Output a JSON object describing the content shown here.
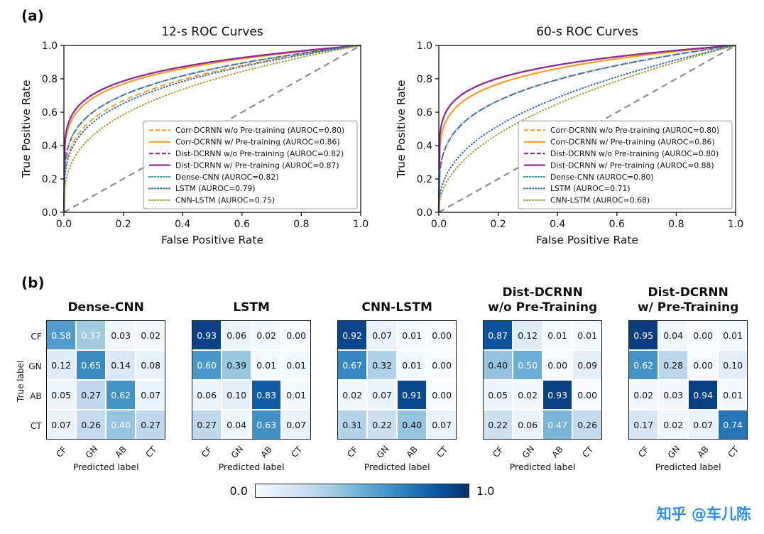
{
  "figure": {
    "panel_a_label": "(a)",
    "panel_b_label": "(b)"
  },
  "colorbar": {
    "min_label": "0.0",
    "max_label": "1.0",
    "colormap": "Blues",
    "stops": [
      [
        0,
        "#f7fbff"
      ],
      [
        0.125,
        "#deebf7"
      ],
      [
        0.25,
        "#c6dbef"
      ],
      [
        0.375,
        "#9ecae1"
      ],
      [
        0.5,
        "#6baed6"
      ],
      [
        0.625,
        "#4292c6"
      ],
      [
        0.75,
        "#2171b5"
      ],
      [
        0.875,
        "#08519c"
      ],
      [
        1,
        "#08306b"
      ]
    ]
  },
  "watermark": {
    "text": "知乎 @车儿陈",
    "color": "#2d8cf0"
  },
  "chart_data": [
    {
      "id": "roc-12s",
      "type": "line",
      "title": "12-s ROC Curves",
      "xlabel": "False Positive Rate",
      "ylabel": "True Positive Rate",
      "xlim": [
        0,
        1
      ],
      "ylim": [
        0,
        1
      ],
      "xticks": [
        0,
        0.2,
        0.4,
        0.6,
        0.8,
        1.0
      ],
      "yticks": [
        0,
        0.2,
        0.4,
        0.6,
        0.8,
        1.0
      ],
      "grid": false,
      "legend_position": "lower right",
      "diagonal_reference_line": {
        "color": "#8c8c8c",
        "linestyle": "dashed"
      },
      "series": [
        {
          "name": "Corr-DCRNN w/o Pre-training (AUROC=0.80)",
          "auroc": 0.8,
          "color": "#f5a02a",
          "linestyle": "dashed"
        },
        {
          "name": "Corr-DCRNN w/ Pre-training (AUROC=0.86)",
          "auroc": 0.86,
          "color": "#f5a02a",
          "linestyle": "solid"
        },
        {
          "name": "Dist-DCRNN w/o Pre-training (AUROC=0.82)",
          "auroc": 0.82,
          "color": "#8e2a96",
          "linestyle": "dashed"
        },
        {
          "name": "Dist-DCRNN w/ Pre-training (AUROC=0.87)",
          "auroc": 0.87,
          "color": "#8e2a96",
          "linestyle": "solid"
        },
        {
          "name": "Dense-CNN (AUROC=0.82)",
          "auroc": 0.82,
          "color": "#2e9e9e",
          "linestyle": "dotted"
        },
        {
          "name": "LSTM (AUROC=0.79)",
          "auroc": 0.79,
          "color": "#3a66c9",
          "linestyle": "dotted"
        },
        {
          "name": "CNN-LSTM (AUROC=0.75)",
          "auroc": 0.75,
          "color": "#a0a12f",
          "linestyle": "dotted"
        }
      ]
    },
    {
      "id": "roc-60s",
      "type": "line",
      "title": "60-s ROC Curves",
      "xlabel": "False Positive Rate",
      "ylabel": "True Positive Rate",
      "xlim": [
        0,
        1
      ],
      "ylim": [
        0,
        1
      ],
      "xticks": [
        0,
        0.2,
        0.4,
        0.6,
        0.8,
        1.0
      ],
      "yticks": [
        0,
        0.2,
        0.4,
        0.6,
        0.8,
        1.0
      ],
      "grid": false,
      "legend_position": "lower right",
      "diagonal_reference_line": {
        "color": "#8c8c8c",
        "linestyle": "dashed"
      },
      "series": [
        {
          "name": "Corr-DCRNN w/o Pre-training (AUROC=0.80)",
          "auroc": 0.8,
          "color": "#f5a02a",
          "linestyle": "dashed"
        },
        {
          "name": "Corr-DCRNN w/ Pre-training (AUROC=0.86)",
          "auroc": 0.86,
          "color": "#f5a02a",
          "linestyle": "solid"
        },
        {
          "name": "Dist-DCRNN w/o Pre-training (AUROC=0.80)",
          "auroc": 0.8,
          "color": "#8e2a96",
          "linestyle": "dashed"
        },
        {
          "name": "Dist-DCRNN w/ Pre-training (AUROC=0.88)",
          "auroc": 0.88,
          "color": "#8e2a96",
          "linestyle": "solid"
        },
        {
          "name": "Dense-CNN (AUROC=0.80)",
          "auroc": 0.8,
          "color": "#2e9e9e",
          "linestyle": "dotted"
        },
        {
          "name": "LSTM (AUROC=0.71)",
          "auroc": 0.71,
          "color": "#3a66c9",
          "linestyle": "dotted"
        },
        {
          "name": "CNN-LSTM (AUROC=0.68)",
          "auroc": 0.68,
          "color": "#a0a12f",
          "linestyle": "dotted"
        }
      ]
    },
    {
      "id": "cm-dense-cnn",
      "type": "heatmap",
      "title_lines": [
        "Dense-CNN"
      ],
      "xlabel": "Predicted label",
      "ylabel": "True label",
      "x_categories": [
        "CF",
        "GN",
        "AB",
        "CT"
      ],
      "y_categories": [
        "CF",
        "GN",
        "AB",
        "CT"
      ],
      "colormap": "Blues",
      "vmin": 0,
      "vmax": 1,
      "values": [
        [
          0.58,
          0.37,
          0.03,
          0.02
        ],
        [
          0.12,
          0.65,
          0.14,
          0.08
        ],
        [
          0.05,
          0.27,
          0.62,
          0.07
        ],
        [
          0.07,
          0.26,
          0.4,
          0.27
        ]
      ]
    },
    {
      "id": "cm-lstm",
      "type": "heatmap",
      "title_lines": [
        "LSTM"
      ],
      "xlabel": "Predicted label",
      "x_categories": [
        "CF",
        "GN",
        "AB",
        "CT"
      ],
      "y_categories": [
        "CF",
        "GN",
        "AB",
        "CT"
      ],
      "colormap": "Blues",
      "vmin": 0,
      "vmax": 1,
      "values": [
        [
          0.93,
          0.06,
          0.02,
          0.0
        ],
        [
          0.6,
          0.39,
          0.01,
          0.01
        ],
        [
          0.06,
          0.1,
          0.83,
          0.01
        ],
        [
          0.27,
          0.04,
          0.63,
          0.07
        ]
      ]
    },
    {
      "id": "cm-cnn-lstm",
      "type": "heatmap",
      "title_lines": [
        "CNN-LSTM"
      ],
      "xlabel": "Predicted label",
      "x_categories": [
        "CF",
        "GN",
        "AB",
        "CT"
      ],
      "y_categories": [
        "CF",
        "GN",
        "AB",
        "CT"
      ],
      "colormap": "Blues",
      "vmin": 0,
      "vmax": 1,
      "values": [
        [
          0.92,
          0.07,
          0.01,
          0.0
        ],
        [
          0.67,
          0.32,
          0.01,
          0.0
        ],
        [
          0.02,
          0.07,
          0.91,
          0.0
        ],
        [
          0.31,
          0.22,
          0.4,
          0.07
        ]
      ]
    },
    {
      "id": "cm-dist-dcrnn-wo-pretraining",
      "type": "heatmap",
      "title_lines": [
        "Dist-DCRNN",
        "w/o Pre-Training"
      ],
      "xlabel": "Predicted label",
      "x_categories": [
        "CF",
        "GN",
        "AB",
        "CT"
      ],
      "y_categories": [
        "CF",
        "GN",
        "AB",
        "CT"
      ],
      "colormap": "Blues",
      "vmin": 0,
      "vmax": 1,
      "values": [
        [
          0.87,
          0.12,
          0.01,
          0.01
        ],
        [
          0.4,
          0.5,
          0.0,
          0.09
        ],
        [
          0.05,
          0.02,
          0.93,
          0.0
        ],
        [
          0.22,
          0.06,
          0.47,
          0.26
        ]
      ]
    },
    {
      "id": "cm-dist-dcrnn-w-pretraining",
      "type": "heatmap",
      "title_lines": [
        "Dist-DCRNN",
        "w/ Pre-Training"
      ],
      "xlabel": "Predicted label",
      "x_categories": [
        "CF",
        "GN",
        "AB",
        "CT"
      ],
      "y_categories": [
        "CF",
        "GN",
        "AB",
        "CT"
      ],
      "colormap": "Blues",
      "vmin": 0,
      "vmax": 1,
      "values": [
        [
          0.95,
          0.04,
          0.0,
          0.01
        ],
        [
          0.62,
          0.28,
          0.0,
          0.1
        ],
        [
          0.02,
          0.03,
          0.94,
          0.01
        ],
        [
          0.17,
          0.02,
          0.07,
          0.74
        ]
      ]
    }
  ]
}
